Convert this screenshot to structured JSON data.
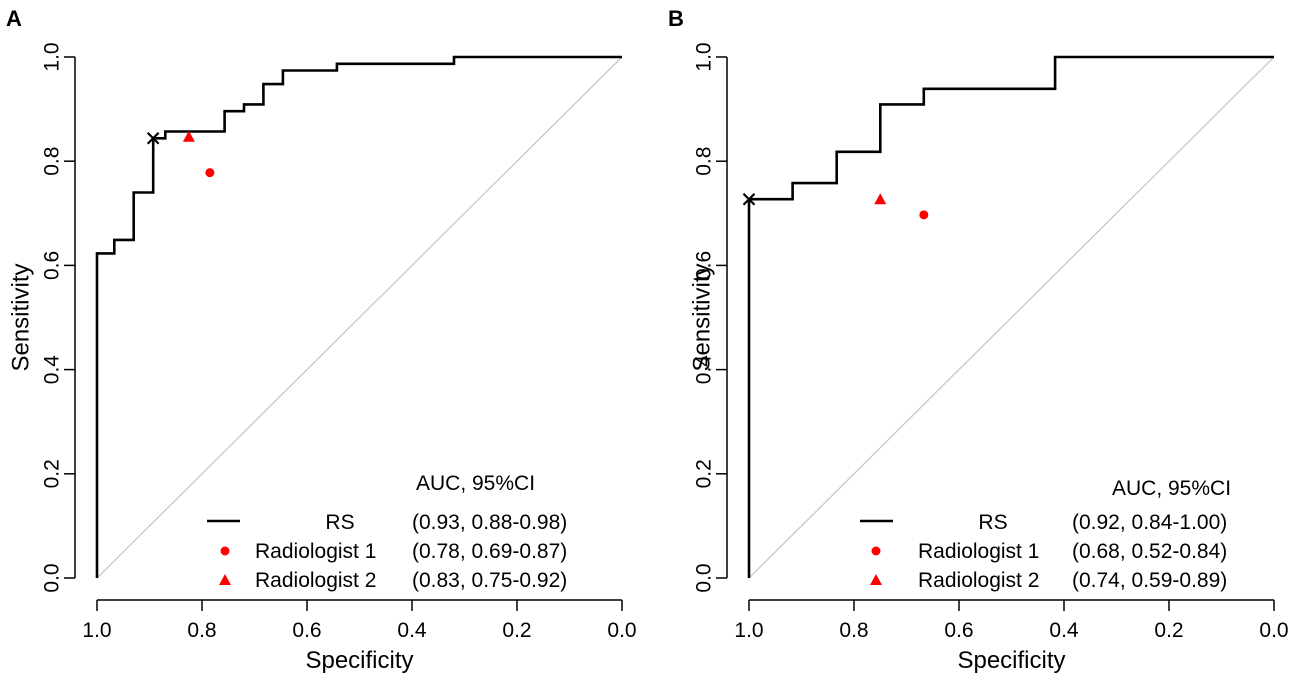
{
  "figure": {
    "panels": [
      "A",
      "B"
    ]
  },
  "chart_data": [
    {
      "panel": "A",
      "type": "line",
      "xlabel": "Specificity",
      "ylabel": "Sensitivity",
      "xlim": [
        1.0,
        0.0
      ],
      "ylim": [
        0.0,
        1.0
      ],
      "x_ticks": [
        "1.0",
        "0.8",
        "0.6",
        "0.4",
        "0.2",
        "0.0"
      ],
      "y_ticks": [
        "0.0",
        "0.2",
        "0.4",
        "0.6",
        "0.8",
        "1.0"
      ],
      "reference_line": [
        [
          1.0,
          0.0
        ],
        [
          0.0,
          1.0
        ]
      ],
      "series": [
        {
          "name": "RS",
          "auc_text": "(0.93, 0.88-0.98)",
          "color": "#000000",
          "points": [
            [
              1.0,
              0.0
            ],
            [
              1.0,
              0.623
            ],
            [
              0.967,
              0.623
            ],
            [
              0.967,
              0.649
            ],
            [
              0.93,
              0.649
            ],
            [
              0.93,
              0.74
            ],
            [
              0.893,
              0.74
            ],
            [
              0.893,
              0.844
            ],
            [
              0.87,
              0.844
            ],
            [
              0.87,
              0.857
            ],
            [
              0.757,
              0.857
            ],
            [
              0.757,
              0.896
            ],
            [
              0.72,
              0.896
            ],
            [
              0.72,
              0.909
            ],
            [
              0.683,
              0.909
            ],
            [
              0.683,
              0.948
            ],
            [
              0.646,
              0.948
            ],
            [
              0.646,
              0.974
            ],
            [
              0.543,
              0.974
            ],
            [
              0.543,
              0.987
            ],
            [
              0.32,
              0.987
            ],
            [
              0.32,
              1.0
            ],
            [
              0.0,
              1.0
            ]
          ],
          "optimal_point": [
            0.893,
            0.844
          ]
        },
        {
          "name": "Radiologist 1",
          "auc_text": "(0.78, 0.69-0.87)",
          "color": "#ff0000",
          "marker": "circle",
          "point": [
            0.785,
            0.778
          ]
        },
        {
          "name": "Radiologist 2",
          "auc_text": "(0.83, 0.75-0.92)",
          "color": "#ff0000",
          "marker": "triangle",
          "point": [
            0.825,
            0.847
          ]
        }
      ],
      "legend": {
        "title": "AUC, 95%CI",
        "position": "bottom-right"
      }
    },
    {
      "panel": "B",
      "type": "line",
      "xlabel": "Specificity",
      "ylabel": "Sensitivity",
      "xlim": [
        1.0,
        0.0
      ],
      "ylim": [
        0.0,
        1.0
      ],
      "x_ticks": [
        "1.0",
        "0.8",
        "0.6",
        "0.4",
        "0.2",
        "0.0"
      ],
      "y_ticks": [
        "0.0",
        "0.2",
        "0.4",
        "0.6",
        "0.8",
        "1.0"
      ],
      "reference_line": [
        [
          1.0,
          0.0
        ],
        [
          0.0,
          1.0
        ]
      ],
      "series": [
        {
          "name": "RS",
          "auc_text": "(0.92, 0.84-1.00)",
          "color": "#000000",
          "points": [
            [
              1.0,
              0.0
            ],
            [
              1.0,
              0.727
            ],
            [
              0.917,
              0.727
            ],
            [
              0.917,
              0.758
            ],
            [
              0.833,
              0.758
            ],
            [
              0.833,
              0.818
            ],
            [
              0.75,
              0.818
            ],
            [
              0.75,
              0.909
            ],
            [
              0.667,
              0.909
            ],
            [
              0.667,
              0.939
            ],
            [
              0.417,
              0.939
            ],
            [
              0.417,
              1.0
            ],
            [
              0.0,
              1.0
            ]
          ],
          "optimal_point": [
            1.0,
            0.727
          ]
        },
        {
          "name": "Radiologist 1",
          "auc_text": "(0.68, 0.52-0.84)",
          "color": "#ff0000",
          "marker": "circle",
          "point": [
            0.667,
            0.697
          ]
        },
        {
          "name": "Radiologist 2",
          "auc_text": "(0.74, 0.59-0.89)",
          "color": "#ff0000",
          "marker": "triangle",
          "point": [
            0.75,
            0.727
          ]
        }
      ],
      "legend": {
        "title": "AUC, 95%CI",
        "position": "bottom-right"
      }
    }
  ]
}
